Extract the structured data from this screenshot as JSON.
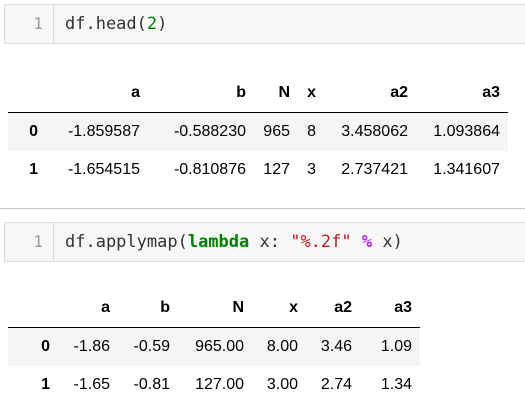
{
  "cell1": {
    "line_number": "1",
    "code": {
      "prefix": "df.head(",
      "arg": "2",
      "suffix": ")"
    }
  },
  "table1": {
    "columns": [
      "a",
      "b",
      "N",
      "x",
      "a2",
      "a3"
    ],
    "rows": [
      {
        "index": "0",
        "values": [
          "-1.859587",
          "-0.588230",
          "965",
          "8",
          "3.458062",
          "1.093864"
        ]
      },
      {
        "index": "1",
        "values": [
          "-1.654515",
          "-0.810876",
          "127",
          "3",
          "2.737421",
          "1.341607"
        ]
      }
    ]
  },
  "cell2": {
    "line_number": "1",
    "code": {
      "prefix": "df.applymap(",
      "keyword": "lambda",
      "mid": " x: ",
      "string": "\"%.2f\"",
      "space1": " ",
      "operator": "%",
      "suffix": " x)"
    }
  },
  "table2": {
    "columns": [
      "a",
      "b",
      "N",
      "x",
      "a2",
      "a3"
    ],
    "rows": [
      {
        "index": "0",
        "values": [
          "-1.86",
          "-0.59",
          "965.00",
          "8.00",
          "3.46",
          "1.09"
        ]
      },
      {
        "index": "1",
        "values": [
          "-1.65",
          "-0.81",
          "127.00",
          "3.00",
          "2.74",
          "1.34"
        ]
      }
    ]
  }
}
